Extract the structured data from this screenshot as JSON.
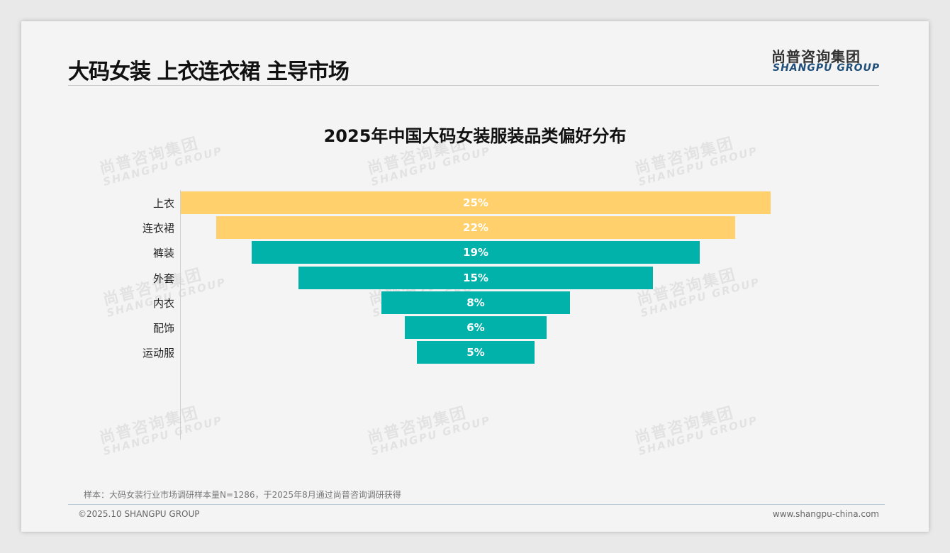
{
  "header": {
    "title": "大码女装 上衣连衣裙 主导市场",
    "logo_cn": "尚普咨询集团",
    "logo_en": "SHANGPU GROUP"
  },
  "watermark": {
    "cn": "尚普咨询集团",
    "en": "SHANGPU GROUP"
  },
  "chart_data": {
    "type": "bar",
    "orientation": "horizontal-funnel",
    "title": "2025年中国大码女装服装品类偏好分布",
    "categories": [
      "上衣",
      "连衣裙",
      "裤装",
      "外套",
      "内衣",
      "配饰",
      "运动服"
    ],
    "values": [
      25,
      22,
      19,
      15,
      8,
      6,
      5
    ],
    "labels": [
      "25%",
      "22%",
      "19%",
      "15%",
      "8%",
      "6%",
      "5%"
    ],
    "colors": [
      "#ffd06b",
      "#ffd06b",
      "#00b2a9",
      "#00b2a9",
      "#00b2a9",
      "#00b2a9",
      "#00b2a9"
    ],
    "unit": "%",
    "max": 25
  },
  "footer": {
    "note": "样本：大码女装行业市场调研样本量N=1286，于2025年8月通过尚普咨询调研获得",
    "copyright": "©2025.10 SHANGPU GROUP",
    "website": "www.shangpu-china.com"
  }
}
